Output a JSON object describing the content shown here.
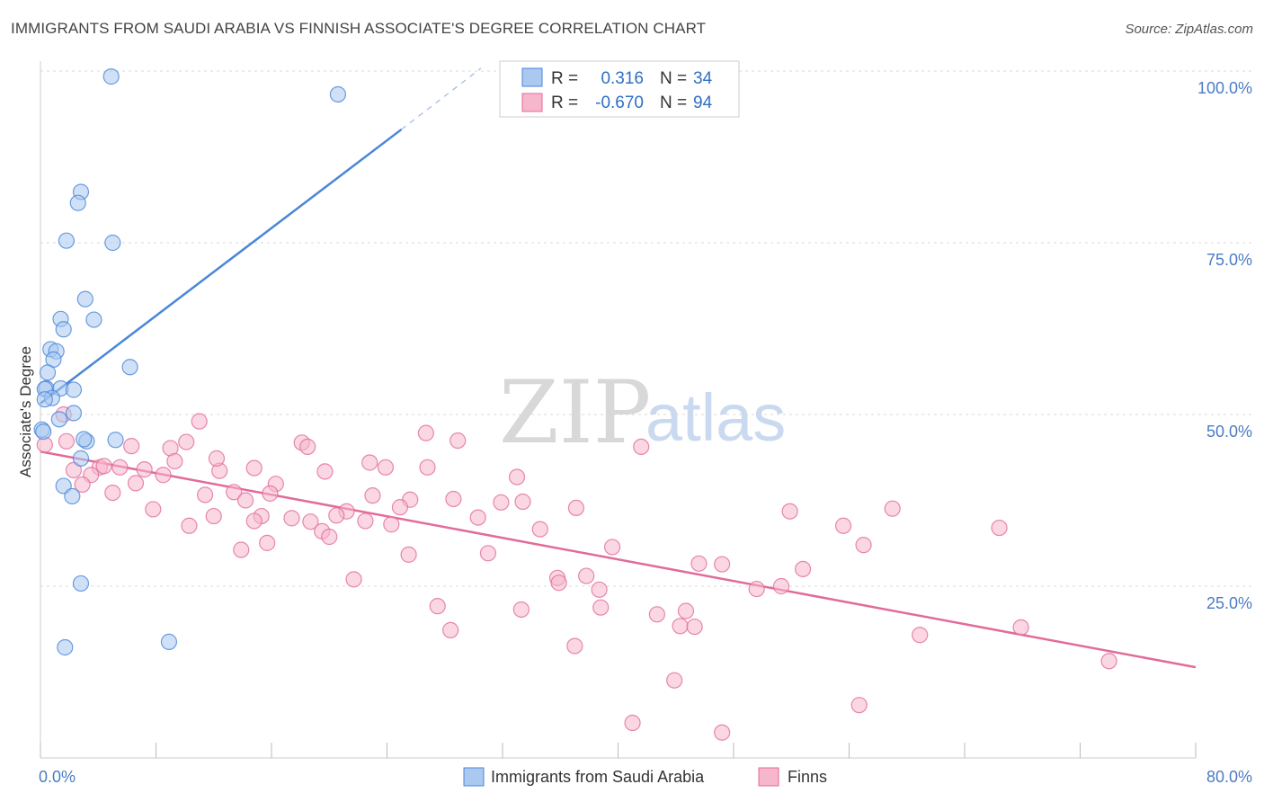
{
  "title": "IMMIGRANTS FROM SAUDI ARABIA VS FINNISH ASSOCIATE'S DEGREE CORRELATION CHART",
  "source": "Source: ZipAtlas.com",
  "watermark": {
    "zip": "ZIP",
    "atlas": "atlas"
  },
  "colors": {
    "blue": "#4a86d8",
    "blue_fill": "#aac8f0",
    "pink": "#e26b9a",
    "pink_fill": "#f6b6cc",
    "tick_text": "#4a7cc4",
    "grid": "#d9d9d9"
  },
  "chart_data": {
    "type": "scatter",
    "ylabel": "Associate's Degree",
    "xlim": [
      0,
      80
    ],
    "ylim": [
      0,
      100
    ],
    "x_tick_labels": [
      {
        "value": 0,
        "label": "0.0%"
      },
      {
        "value": 80,
        "label": "80.0%"
      }
    ],
    "y_tick_labels": [
      {
        "value": 25,
        "label": "25.0%"
      },
      {
        "value": 50,
        "label": "50.0%"
      },
      {
        "value": 75,
        "label": "75.0%"
      },
      {
        "value": 100,
        "label": "100.0%"
      }
    ],
    "grid": true,
    "legend_position": "top-center",
    "legend": [
      {
        "r_label": "R =",
        "r_value": "0.316",
        "n_label": "N =",
        "n_value": "34"
      },
      {
        "r_label": "R =",
        "r_value": "-0.670",
        "n_label": "N =",
        "n_value": "94"
      }
    ],
    "series": [
      {
        "name": "Immigrants from Saudi Arabia",
        "color": "#4a86d8",
        "trend": {
          "x0": 0,
          "y0": 51.6,
          "x1": 25,
          "y1": 91.5,
          "dash_to_x": 30.5,
          "dash_to_y": 100.4
        },
        "points": [
          [
            4.9,
            99.2
          ],
          [
            20.6,
            96.6
          ],
          [
            2.8,
            82.4
          ],
          [
            2.6,
            80.8
          ],
          [
            1.8,
            75.3
          ],
          [
            5.0,
            75.0
          ],
          [
            3.1,
            66.8
          ],
          [
            1.4,
            63.9
          ],
          [
            3.7,
            63.8
          ],
          [
            1.6,
            62.4
          ],
          [
            0.7,
            59.5
          ],
          [
            1.1,
            59.2
          ],
          [
            0.9,
            58.0
          ],
          [
            6.2,
            56.9
          ],
          [
            0.5,
            56.1
          ],
          [
            0.4,
            53.8
          ],
          [
            1.4,
            53.8
          ],
          [
            0.3,
            53.7
          ],
          [
            2.3,
            53.6
          ],
          [
            0.8,
            52.4
          ],
          [
            0.3,
            52.2
          ],
          [
            2.3,
            50.2
          ],
          [
            1.3,
            49.3
          ],
          [
            0.1,
            47.8
          ],
          [
            5.2,
            46.3
          ],
          [
            3.2,
            46.1
          ],
          [
            3.0,
            46.4
          ],
          [
            2.8,
            43.6
          ],
          [
            1.6,
            39.6
          ],
          [
            2.2,
            38.1
          ],
          [
            2.8,
            25.4
          ],
          [
            1.7,
            16.1
          ],
          [
            8.9,
            16.9
          ],
          [
            0.2,
            47.5
          ]
        ]
      },
      {
        "name": "Finns",
        "color": "#e26b9a",
        "trend": {
          "x0": 0,
          "y0": 44.6,
          "x1": 80,
          "y1": 13.2
        },
        "points": [
          [
            0.3,
            45.6
          ],
          [
            1.6,
            50.0
          ],
          [
            1.8,
            46.1
          ],
          [
            11.0,
            49.0
          ],
          [
            18.1,
            45.9
          ],
          [
            18.5,
            45.3
          ],
          [
            26.7,
            47.3
          ],
          [
            28.9,
            46.2
          ],
          [
            6.3,
            45.4
          ],
          [
            9.0,
            45.1
          ],
          [
            10.1,
            46.0
          ],
          [
            41.6,
            45.3
          ],
          [
            2.3,
            41.9
          ],
          [
            4.1,
            42.3
          ],
          [
            5.5,
            42.3
          ],
          [
            7.2,
            42.0
          ],
          [
            8.5,
            41.2
          ],
          [
            12.4,
            41.8
          ],
          [
            14.8,
            42.2
          ],
          [
            19.7,
            41.7
          ],
          [
            22.8,
            43.0
          ],
          [
            23.9,
            42.3
          ],
          [
            26.8,
            42.3
          ],
          [
            12.2,
            43.6
          ],
          [
            9.3,
            43.2
          ],
          [
            3.5,
            41.2
          ],
          [
            4.4,
            42.5
          ],
          [
            6.6,
            40.0
          ],
          [
            33.0,
            40.9
          ],
          [
            2.9,
            39.8
          ],
          [
            16.3,
            39.9
          ],
          [
            23.0,
            38.2
          ],
          [
            25.6,
            37.6
          ],
          [
            28.6,
            37.7
          ],
          [
            5.0,
            38.6
          ],
          [
            11.4,
            38.3
          ],
          [
            13.4,
            38.7
          ],
          [
            14.2,
            37.5
          ],
          [
            15.9,
            38.5
          ],
          [
            31.9,
            37.2
          ],
          [
            33.4,
            37.3
          ],
          [
            37.1,
            36.4
          ],
          [
            24.9,
            36.5
          ],
          [
            21.2,
            35.9
          ],
          [
            20.5,
            35.3
          ],
          [
            12.0,
            35.2
          ],
          [
            15.3,
            35.2
          ],
          [
            17.4,
            34.9
          ],
          [
            18.7,
            34.4
          ],
          [
            14.8,
            34.5
          ],
          [
            22.5,
            34.5
          ],
          [
            24.3,
            34.0
          ],
          [
            30.3,
            35.0
          ],
          [
            10.3,
            33.8
          ],
          [
            19.5,
            33.0
          ],
          [
            20.0,
            32.2
          ],
          [
            34.6,
            33.3
          ],
          [
            7.8,
            36.2
          ],
          [
            51.9,
            35.9
          ],
          [
            55.6,
            33.8
          ],
          [
            59.0,
            36.3
          ],
          [
            66.4,
            33.5
          ],
          [
            57.0,
            31.0
          ],
          [
            15.7,
            31.3
          ],
          [
            13.9,
            30.3
          ],
          [
            31.0,
            29.8
          ],
          [
            39.6,
            30.7
          ],
          [
            45.6,
            28.3
          ],
          [
            52.8,
            27.5
          ],
          [
            21.7,
            26.0
          ],
          [
            35.8,
            26.2
          ],
          [
            35.9,
            25.5
          ],
          [
            37.8,
            26.5
          ],
          [
            38.7,
            24.5
          ],
          [
            49.6,
            24.6
          ],
          [
            27.5,
            22.1
          ],
          [
            33.3,
            21.6
          ],
          [
            38.8,
            21.9
          ],
          [
            42.7,
            20.9
          ],
          [
            44.7,
            21.4
          ],
          [
            44.3,
            19.2
          ],
          [
            28.4,
            18.6
          ],
          [
            60.9,
            17.9
          ],
          [
            67.9,
            19.0
          ],
          [
            37.0,
            16.3
          ],
          [
            74.0,
            14.1
          ],
          [
            43.9,
            11.3
          ],
          [
            56.7,
            7.7
          ],
          [
            41.0,
            5.1
          ],
          [
            47.2,
            3.7
          ],
          [
            47.2,
            28.2
          ],
          [
            45.3,
            19.1
          ],
          [
            51.3,
            25.0
          ],
          [
            25.5,
            29.6
          ]
        ]
      }
    ]
  }
}
